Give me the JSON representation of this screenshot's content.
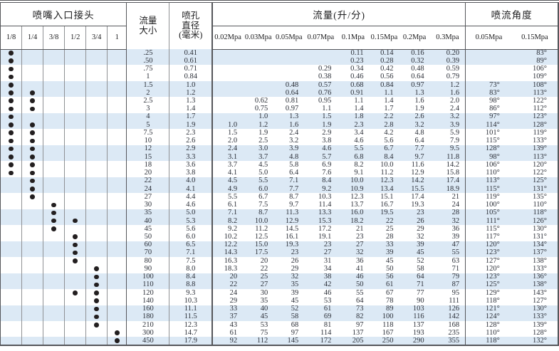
{
  "header": {
    "inlet_connector": "喷嘴入口接头",
    "connector_sizes": [
      "1/8",
      "1/4",
      "3/8",
      "1/2",
      "3/4",
      "1"
    ],
    "flow_size_l1": "流量",
    "flow_size_l2": "大小",
    "orifice_l1": "喷孔",
    "orifice_l2": "直径",
    "orifice_l3": "(毫米)",
    "flow_rate": "流量(升/分)",
    "pressures": [
      "0.02Mpa",
      "0.03Mpa",
      "0.05Mpa",
      "0.07Mpa",
      "0.1Mpa",
      "0.15Mpa",
      "0.2Mpa",
      "0.3Mpa"
    ],
    "spray_angle": "喷流角度",
    "angle_pressures": [
      "0.05Mpa",
      "0.15Mpa"
    ]
  },
  "ui": {
    "stripe_color": "#dce9f5",
    "border_dark": "#55565a",
    "border_mid": "#8f9194",
    "dot_color": "#231f20"
  },
  "rows": [
    {
      "dots": [
        1,
        0,
        0,
        0,
        0,
        0
      ],
      "size": ".25",
      "orifice": "0.41",
      "flows": [
        "",
        "",
        "",
        "",
        "0.11",
        "0.14",
        "0.16",
        "0.20"
      ],
      "angles": [
        "",
        "83°"
      ]
    },
    {
      "dots": [
        1,
        0,
        0,
        0,
        0,
        0
      ],
      "size": ".50",
      "orifice": "0.61",
      "flows": [
        "",
        "",
        "",
        "",
        "0.23",
        "0.28",
        "0.32",
        "0.39"
      ],
      "angles": [
        "",
        "89°"
      ]
    },
    {
      "dots": [
        1,
        0,
        0,
        0,
        0,
        0
      ],
      "size": ".75",
      "orifice": "0.71",
      "flows": [
        "",
        "",
        "",
        "0.29",
        "0.34",
        "0.42",
        "0.48",
        "0.59"
      ],
      "angles": [
        "",
        "106°"
      ]
    },
    {
      "dots": [
        1,
        0,
        0,
        0,
        0,
        0
      ],
      "size": "1",
      "orifice": "0.84",
      "flows": [
        "",
        "",
        "",
        "0.38",
        "0.46",
        "0.56",
        "0.64",
        "0.79"
      ],
      "angles": [
        "",
        "109°"
      ]
    },
    {
      "dots": [
        1,
        0,
        0,
        0,
        0,
        0
      ],
      "size": "1.5",
      "orifice": "1.0",
      "flows": [
        "",
        "",
        "0.48",
        "0.57",
        "0.68",
        "0.84",
        "0.97",
        "1.2"
      ],
      "angles": [
        "73°",
        "108°"
      ]
    },
    {
      "dots": [
        1,
        1,
        0,
        0,
        0,
        0
      ],
      "size": "2",
      "orifice": "1.2",
      "flows": [
        "",
        "",
        "0.64",
        "0.76",
        "0.91",
        "1.1",
        "1.3",
        "1.6"
      ],
      "angles": [
        "83°",
        "113°"
      ]
    },
    {
      "dots": [
        1,
        1,
        0,
        0,
        0,
        0
      ],
      "size": "2.5",
      "orifice": "1.3",
      "flows": [
        "",
        "0.62",
        "0.81",
        "0.95",
        "1.1",
        "1.4",
        "1.6",
        "2.0"
      ],
      "angles": [
        "98°",
        "122°"
      ]
    },
    {
      "dots": [
        1,
        1,
        0,
        0,
        0,
        0
      ],
      "size": "3",
      "orifice": "1.4",
      "flows": [
        "",
        "0.75",
        "0.97",
        "1.1",
        "1.4",
        "1.7",
        "1.9",
        "2.4"
      ],
      "angles": [
        "86°",
        "112°"
      ]
    },
    {
      "dots": [
        1,
        0,
        0,
        0,
        0,
        0
      ],
      "size": "4",
      "orifice": "1.7",
      "flows": [
        "",
        "1.0",
        "1.3",
        "1.5",
        "1.8",
        "2.2",
        "2.6",
        "3.2"
      ],
      "angles": [
        "97°",
        "123°"
      ]
    },
    {
      "dots": [
        1,
        1,
        0,
        0,
        0,
        0
      ],
      "size": "5",
      "orifice": "1.9",
      "flows": [
        "1.0",
        "1.2",
        "1.6",
        "1.9",
        "2.3",
        "2.8",
        "3.2",
        "3.9"
      ],
      "angles": [
        "114°",
        "128°"
      ]
    },
    {
      "dots": [
        1,
        1,
        0,
        0,
        0,
        0
      ],
      "size": "7.5",
      "orifice": "2.3",
      "flows": [
        "1.5",
        "1.9",
        "2.4",
        "2.9",
        "3.4",
        "4.2",
        "4.8",
        "5.9"
      ],
      "angles": [
        "101°",
        "119°"
      ]
    },
    {
      "dots": [
        1,
        1,
        0,
        0,
        0,
        0
      ],
      "size": "10",
      "orifice": "2.6",
      "flows": [
        "2.0",
        "2.5",
        "3.2",
        "3.8",
        "4.6",
        "5.6",
        "6.4",
        "7.9"
      ],
      "angles": [
        "115°",
        "133°"
      ]
    },
    {
      "dots": [
        1,
        1,
        0,
        0,
        0,
        0
      ],
      "size": "12",
      "orifice": "2.9",
      "flows": [
        "2.4",
        "3.0",
        "3.9",
        "4.6",
        "5.5",
        "6.7",
        "7.7",
        "9.5"
      ],
      "angles": [
        "128°",
        "139°"
      ]
    },
    {
      "dots": [
        1,
        1,
        0,
        0,
        0,
        0
      ],
      "size": "15",
      "orifice": "3.3",
      "flows": [
        "3.1",
        "3.7",
        "4.8",
        "5.7",
        "6.8",
        "8.4",
        "9.7",
        "11.8"
      ],
      "angles": [
        "98°",
        "113°"
      ]
    },
    {
      "dots": [
        1,
        1,
        0,
        0,
        0,
        0
      ],
      "size": "18",
      "orifice": "3.6",
      "flows": [
        "3.7",
        "4.5",
        "5.8",
        "6.9",
        "8.2",
        "10.0",
        "11.6",
        "14.2"
      ],
      "angles": [
        "106°",
        "120°"
      ]
    },
    {
      "dots": [
        1,
        1,
        0,
        0,
        0,
        0
      ],
      "size": "20",
      "orifice": "3.8",
      "flows": [
        "4.1",
        "5.0",
        "6.4",
        "7.6",
        "9.1",
        "11.2",
        "12.9",
        "15.8"
      ],
      "angles": [
        "110°",
        "122°"
      ]
    },
    {
      "dots": [
        0,
        1,
        0,
        0,
        0,
        0
      ],
      "size": "22",
      "orifice": "4.0",
      "flows": [
        "4.5",
        "5.5",
        "7.1",
        "8.4",
        "10.0",
        "12.3",
        "14.2",
        "17.4"
      ],
      "angles": [
        "113°",
        "125°"
      ]
    },
    {
      "dots": [
        0,
        1,
        0,
        0,
        0,
        0
      ],
      "size": "24",
      "orifice": "4.1",
      "flows": [
        "4.9",
        "6.0",
        "7.7",
        "9.2",
        "10.9",
        "13.4",
        "15.5",
        "18.9"
      ],
      "angles": [
        "115°",
        "131°"
      ]
    },
    {
      "dots": [
        0,
        1,
        0,
        0,
        0,
        0
      ],
      "size": "27",
      "orifice": "4.4",
      "flows": [
        "5.5",
        "6.7",
        "8.7",
        "10.3",
        "12.3",
        "15.1",
        "17.4",
        "21"
      ],
      "angles": [
        "119°",
        "135°"
      ]
    },
    {
      "dots": [
        0,
        0,
        1,
        0,
        0,
        0
      ],
      "size": "30",
      "orifice": "4.6",
      "flows": [
        "6.1",
        "7.5",
        "9.7",
        "11.4",
        "13.7",
        "16.7",
        "19.3",
        "24"
      ],
      "angles": [
        "100°",
        "110°"
      ]
    },
    {
      "dots": [
        0,
        0,
        1,
        0,
        0,
        0
      ],
      "size": "35",
      "orifice": "5.0",
      "flows": [
        "7.1",
        "8.7",
        "11.3",
        "13.3",
        "16.0",
        "19.5",
        "23",
        "28"
      ],
      "angles": [
        "105°",
        "118°"
      ]
    },
    {
      "dots": [
        0,
        0,
        1,
        1,
        0,
        0
      ],
      "size": "40",
      "orifice": "5.3",
      "flows": [
        "8.2",
        "10.0",
        "12.9",
        "15.3",
        "18.2",
        "22",
        "26",
        "32"
      ],
      "angles": [
        "111°",
        "126°"
      ]
    },
    {
      "dots": [
        0,
        0,
        1,
        0,
        0,
        0
      ],
      "size": "45",
      "orifice": "5.6",
      "flows": [
        "9.2",
        "11.2",
        "14.5",
        "17.2",
        "21",
        "25",
        "29",
        "36"
      ],
      "angles": [
        "115°",
        "130°"
      ]
    },
    {
      "dots": [
        0,
        0,
        0,
        1,
        0,
        0
      ],
      "size": "50",
      "orifice": "6.0",
      "flows": [
        "10.2",
        "12.5",
        "16.1",
        "19.1",
        "23",
        "28",
        "32",
        "39"
      ],
      "angles": [
        "117°",
        "131°"
      ]
    },
    {
      "dots": [
        0,
        0,
        0,
        1,
        0,
        0
      ],
      "size": "60",
      "orifice": "6.5",
      "flows": [
        "12.2",
        "15.0",
        "19.3",
        "23",
        "27",
        "33",
        "39",
        "47"
      ],
      "angles": [
        "120°",
        "134°"
      ]
    },
    {
      "dots": [
        0,
        0,
        0,
        1,
        0,
        0
      ],
      "size": "70",
      "orifice": "7.1",
      "flows": [
        "14.3",
        "17.5",
        "23",
        "27",
        "32",
        "39",
        "45",
        "55"
      ],
      "angles": [
        "123°",
        "137°"
      ]
    },
    {
      "dots": [
        0,
        0,
        0,
        1,
        0,
        0
      ],
      "size": "80",
      "orifice": "7.5",
      "flows": [
        "16.3",
        "20",
        "26",
        "31",
        "36",
        "45",
        "52",
        "63"
      ],
      "angles": [
        "127°",
        "138°"
      ]
    },
    {
      "dots": [
        0,
        0,
        0,
        0,
        1,
        0
      ],
      "size": "90",
      "orifice": "8.0",
      "flows": [
        "18.3",
        "22",
        "29",
        "34",
        "41",
        "50",
        "58",
        "71"
      ],
      "angles": [
        "120°",
        "133°"
      ]
    },
    {
      "dots": [
        0,
        0,
        0,
        0,
        1,
        0
      ],
      "size": "100",
      "orifice": "8.4",
      "flows": [
        "20",
        "25",
        "32",
        "38",
        "46",
        "56",
        "64",
        "79"
      ],
      "angles": [
        "123°",
        "136°"
      ]
    },
    {
      "dots": [
        0,
        0,
        0,
        0,
        1,
        0
      ],
      "size": "110",
      "orifice": "8.8",
      "flows": [
        "22",
        "27",
        "35",
        "42",
        "50",
        "61",
        "71",
        "87"
      ],
      "angles": [
        "125°",
        "138°"
      ]
    },
    {
      "dots": [
        0,
        0,
        0,
        1,
        1,
        0
      ],
      "size": "120",
      "orifice": "9.3",
      "flows": [
        "24",
        "30",
        "39",
        "46",
        "55",
        "67",
        "77",
        "95"
      ],
      "angles": [
        "129°",
        "143°"
      ]
    },
    {
      "dots": [
        0,
        0,
        0,
        0,
        1,
        0
      ],
      "size": "140",
      "orifice": "10.3",
      "flows": [
        "29",
        "35",
        "45",
        "53",
        "64",
        "78",
        "90",
        "111"
      ],
      "angles": [
        "118°",
        "127°"
      ]
    },
    {
      "dots": [
        0,
        0,
        0,
        0,
        1,
        0
      ],
      "size": "160",
      "orifice": "11.1",
      "flows": [
        "33",
        "40",
        "52",
        "61",
        "73",
        "89",
        "103",
        "126"
      ],
      "angles": [
        "121°",
        "130°"
      ]
    },
    {
      "dots": [
        0,
        0,
        0,
        0,
        1,
        0
      ],
      "size": "180",
      "orifice": "11.5",
      "flows": [
        "37",
        "45",
        "58",
        "69",
        "82",
        "100",
        "116",
        "142"
      ],
      "angles": [
        "124°",
        "133°"
      ]
    },
    {
      "dots": [
        0,
        0,
        0,
        0,
        1,
        0
      ],
      "size": "210",
      "orifice": "12.3",
      "flows": [
        "43",
        "53",
        "68",
        "81",
        "97",
        "118",
        "137",
        "168"
      ],
      "angles": [
        "128°",
        "139°"
      ]
    },
    {
      "dots": [
        0,
        0,
        0,
        0,
        0,
        1
      ],
      "size": "300",
      "orifice": "14.7",
      "flows": [
        "61",
        "75",
        "97",
        "114",
        "137",
        "167",
        "193",
        "235"
      ],
      "angles": [
        "110°",
        "128°"
      ]
    },
    {
      "dots": [
        0,
        0,
        0,
        0,
        0,
        1
      ],
      "size": "450",
      "orifice": "17.9",
      "flows": [
        "92",
        "112",
        "145",
        "172",
        "205",
        "250",
        "290",
        "355"
      ],
      "angles": [
        "118°",
        "132°"
      ]
    }
  ]
}
